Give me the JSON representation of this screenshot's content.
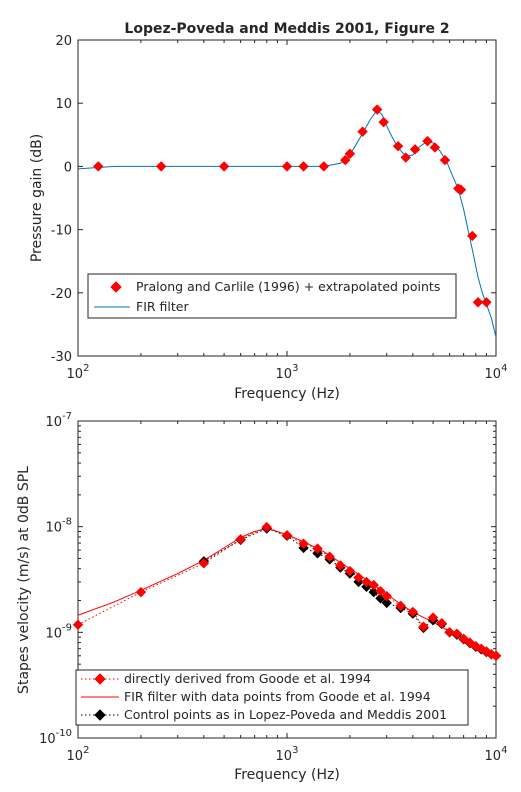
{
  "chart_data": [
    {
      "type": "line",
      "title": "Lopez-Poveda and Meddis 2001, Figure 2",
      "xlabel": "Frequency (Hz)",
      "ylabel": "Pressure gain (dB)",
      "xscale": "log",
      "xlim": [
        100,
        10000
      ],
      "ylim": [
        -30,
        20
      ],
      "x_ticks": [
        100,
        1000,
        10000
      ],
      "y_ticks": [
        20,
        10,
        0,
        -10,
        -20,
        -30
      ],
      "legend_position": "bottom-right",
      "series": [
        {
          "name": "Pralong and Carlile (1996) + extrapolated points",
          "style": "markers",
          "color": "#ff0000",
          "x": [
            125,
            250,
            500,
            1000,
            1200,
            1500,
            1900,
            2000,
            2300,
            2700,
            2900,
            3400,
            3700,
            4100,
            4700,
            5100,
            5700,
            6600,
            6800,
            7700,
            8200,
            9000
          ],
          "y": [
            0,
            0,
            0,
            0,
            0,
            0,
            1,
            2,
            5.5,
            9,
            7,
            3.2,
            1.4,
            2.7,
            4,
            3,
            1,
            -3.5,
            -3.7,
            -11,
            -21.5,
            -21.5
          ]
        },
        {
          "name": "FIR filter",
          "style": "line",
          "color": "#0072bd",
          "x": [
            100,
            150,
            250,
            500,
            1000,
            1500,
            1800,
            1950,
            2100,
            2300,
            2500,
            2700,
            2850,
            3000,
            3200,
            3400,
            3700,
            4000,
            4300,
            4700,
            5000,
            5400,
            5800,
            6200,
            6600,
            7000,
            7400,
            7800,
            8200,
            8600,
            9000,
            9500,
            10000
          ],
          "y": [
            -0.4,
            0,
            0,
            0,
            0,
            0,
            0.5,
            1.3,
            3.0,
            5.2,
            7.4,
            8.9,
            8.2,
            6.4,
            4.5,
            3.0,
            1.6,
            1.8,
            3.1,
            4.0,
            3.7,
            2.4,
            0.8,
            -1.5,
            -3.6,
            -6.8,
            -10.5,
            -14.0,
            -17.5,
            -20.0,
            -21.8,
            -24.0,
            -27.0
          ]
        }
      ]
    },
    {
      "type": "line",
      "title": "",
      "xlabel": "Frequency (Hz)",
      "ylabel": "Stapes velocity (m/s) at 0dB SPL",
      "xscale": "log",
      "yscale": "log",
      "xlim": [
        100,
        10000
      ],
      "ylim": [
        1e-10,
        1e-07
      ],
      "x_ticks": [
        100,
        1000,
        10000
      ],
      "y_ticks": [
        1e-10,
        1e-09,
        1e-08,
        1e-07
      ],
      "legend_position": "bottom-left",
      "series": [
        {
          "name": "directly derived from Goode et al. 1994",
          "style": "dotted-markers",
          "color": "#ff0000",
          "x": [
            100,
            200,
            400,
            600,
            800,
            1000,
            1200,
            1400,
            1600,
            1800,
            2000,
            2200,
            2400,
            2600,
            2800,
            3000,
            3500,
            4000,
            4500,
            5000,
            5500,
            6000,
            6500,
            7000,
            7500,
            8000,
            8500,
            9000,
            9500,
            10000
          ],
          "y": [
            1.18e-09,
            2.4e-09,
            4.5e-09,
            7.6e-09,
            9.9e-09,
            8.3e-09,
            6.9e-09,
            6.2e-09,
            5.2e-09,
            4.3e-09,
            3.8e-09,
            3.3e-09,
            3e-09,
            2.8e-09,
            2.45e-09,
            2.2e-09,
            1.78e-09,
            1.56e-09,
            1.13e-09,
            1.38e-09,
            1.22e-09,
            1e-09,
            9.7e-10,
            8.7e-10,
            8e-10,
            7.4e-10,
            7e-10,
            6.6e-10,
            6.2e-10,
            6e-10
          ]
        },
        {
          "name": "FIR filter with data points from Goode et al. 1994",
          "style": "line",
          "color": "#ff0000",
          "x": [
            100,
            150,
            200,
            300,
            400,
            500,
            600,
            700,
            800,
            900,
            1000,
            1200,
            1500,
            2000,
            2500,
            3000,
            3500,
            4000,
            5000,
            6000,
            7000,
            8000,
            9000,
            10000
          ],
          "y": [
            1.45e-09,
            1.95e-09,
            2.5e-09,
            3.6e-09,
            4.8e-09,
            6.3e-09,
            7.9e-09,
            9e-09,
            9.6e-09,
            9e-09,
            8.4e-09,
            7.2e-09,
            5.8e-09,
            4e-09,
            3e-09,
            2.3e-09,
            1.85e-09,
            1.55e-09,
            1.25e-09,
            1.02e-09,
            8.6e-10,
            7.4e-10,
            6.6e-10,
            6.1e-10
          ]
        },
        {
          "name": "Control points as in Lopez-Poveda and Meddis 2001",
          "style": "dotted-markers",
          "color": "#000000",
          "x": [
            400,
            600,
            800,
            1000,
            1200,
            1400,
            1600,
            1800,
            2000,
            2200,
            2400,
            2600,
            2800,
            3000,
            3500,
            4000,
            4500,
            5000,
            5500,
            6000,
            6500,
            7000,
            7500,
            8000,
            8500,
            9000,
            9500,
            10000
          ],
          "y": [
            4.7e-09,
            7.5e-09,
            9.6e-09,
            8.2e-09,
            6.3e-09,
            5.6e-09,
            4.9e-09,
            4.1e-09,
            3.6e-09,
            3e-09,
            2.7e-09,
            2.4e-09,
            2.1e-09,
            1.9e-09,
            1.7e-09,
            1.5e-09,
            1.1e-09,
            1.3e-09,
            1.2e-09,
            1e-09,
            9.5e-10,
            8.6e-10,
            7.9e-10,
            7.3e-10,
            6.9e-10,
            6.5e-10,
            6.2e-10,
            6e-10
          ]
        }
      ]
    }
  ]
}
